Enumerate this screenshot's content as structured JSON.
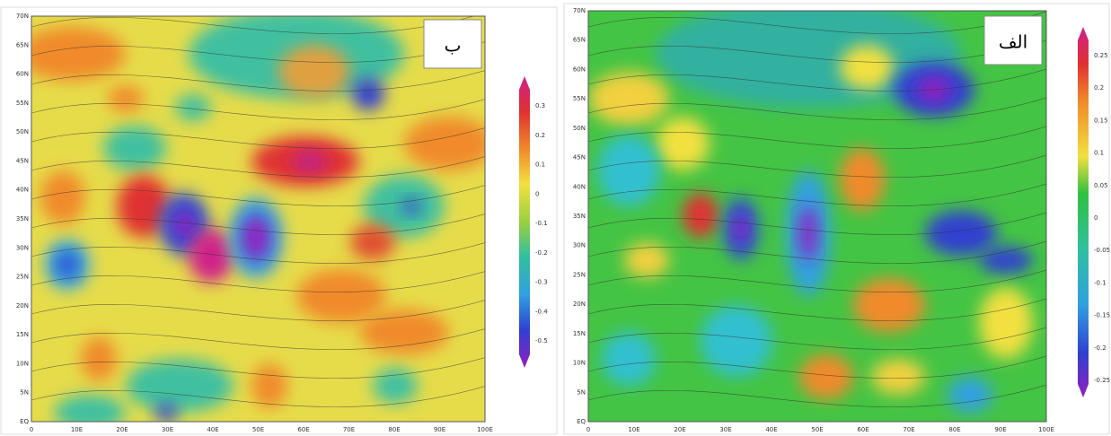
{
  "panels": [
    {
      "label": "ب",
      "colorbar": [
        "0.3",
        "0.2",
        "0.1",
        "0",
        "-0.1",
        "-0.2",
        "-0.3",
        "-0.4",
        "-0.5"
      ],
      "yticks": [
        "70N",
        "65N",
        "60N",
        "55N",
        "50N",
        "45N",
        "40N",
        "35N",
        "30N",
        "25N",
        "20N",
        "15N",
        "10N",
        "5N",
        "EQ"
      ],
      "xticks": [
        "0",
        "10E",
        "20E",
        "30E",
        "40E",
        "50E",
        "60E",
        "70E",
        "80E",
        "90E",
        "100E"
      ]
    },
    {
      "label": "الف",
      "colorbar": [
        "0.25",
        "0.2",
        "0.15",
        "0.1",
        "0.05",
        "0",
        "-0.05",
        "-0.1",
        "-0.15",
        "-0.2",
        "-0.25"
      ],
      "yticks": [
        "70N",
        "65N",
        "60N",
        "55N",
        "50N",
        "45N",
        "40N",
        "35N",
        "30N",
        "25N",
        "20N",
        "15N",
        "10N",
        "5N",
        "EQ"
      ],
      "xticks": [
        "0",
        "10E",
        "20E",
        "30E",
        "40E",
        "50E",
        "60E",
        "70E",
        "80E",
        "90E",
        "100E"
      ]
    }
  ]
}
